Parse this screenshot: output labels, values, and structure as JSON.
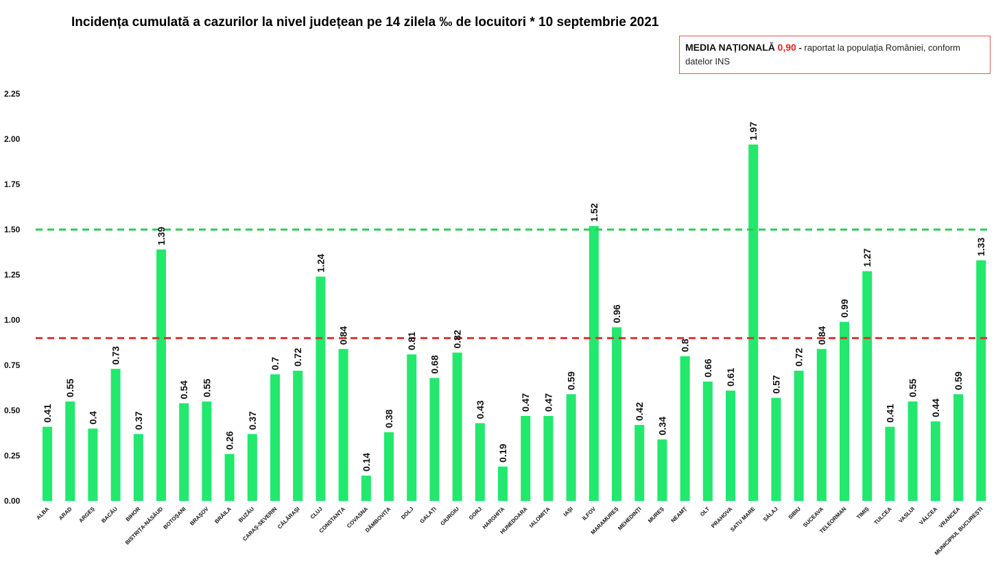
{
  "title": "Incidența cumulată a cazurilor la nivel județean pe 14 zilela ‰ de locuitori * 10 septembrie 2021",
  "annotation": {
    "label": "MEDIA NAȚIONALĂ",
    "value": "0,90",
    "dash": "-",
    "text": "raportat la populația României, conform datelor INS"
  },
  "colors": {
    "bar": "#22e86e",
    "national_average_line": "#e03030",
    "threshold_line": "#2ec85a",
    "annotation_border": "#e05555",
    "annotation_value": "#e02020"
  },
  "chart_data": {
    "type": "bar",
    "title": "Incidența cumulată a cazurilor la nivel județean pe 14 zilela ‰ de locuitori * 10 septembrie 2021",
    "xlabel": "",
    "ylabel": "",
    "ylim": [
      0,
      2.25
    ],
    "yticks": [
      "0.00",
      "0.25",
      "0.50",
      "0.75",
      "1.00",
      "1.25",
      "1.50",
      "1.75",
      "2.00",
      "2.25"
    ],
    "grid": false,
    "categories": [
      "ALBA",
      "ARAD",
      "ARGEȘ",
      "BACĂU",
      "BIHOR",
      "BISTRIȚA-NĂSĂUD",
      "BOTOȘANI",
      "BRAȘOV",
      "BRĂILA",
      "BUZĂU",
      "CARAȘ-SEVERIN",
      "CĂLĂRAȘI",
      "CLUJ",
      "CONSTANȚA",
      "COVASNA",
      "DÂMBOVIȚA",
      "DOLJ",
      "GALAȚI",
      "GIURGIU",
      "GORJ",
      "HARGHITA",
      "HUNEDOARA",
      "IALOMIȚA",
      "IAȘI",
      "ILFOV",
      "MARAMUREȘ",
      "MEHEDINȚI",
      "MUREȘ",
      "NEAMȚ",
      "OLT",
      "PRAHOVA",
      "SATU MARE",
      "SĂLAJ",
      "SIBIU",
      "SUCEAVA",
      "TELEORMAN",
      "TIMIȘ",
      "TULCEA",
      "VASLUI",
      "VÂLCEA",
      "VRANCEA",
      "MUNICIPIUL BUCUREȘTI"
    ],
    "values": [
      0.41,
      0.55,
      0.4,
      0.73,
      0.37,
      1.39,
      0.54,
      0.55,
      0.26,
      0.37,
      0.7,
      0.72,
      1.24,
      0.84,
      0.14,
      0.38,
      0.81,
      0.68,
      0.82,
      0.43,
      0.19,
      0.47,
      0.47,
      0.59,
      1.52,
      0.96,
      0.42,
      0.34,
      0.8,
      0.66,
      0.61,
      1.97,
      0.57,
      0.72,
      0.84,
      0.99,
      1.27,
      0.41,
      0.55,
      0.44,
      0.59,
      1.33
    ],
    "data_labels": [
      "0.41",
      "0.55",
      "0.4",
      "0.73",
      "0.37",
      "1.39",
      "0.54",
      "0.55",
      "0.26",
      "0.37",
      "0.7",
      "0.72",
      "1.24",
      "0.84",
      "0.14",
      "0.38",
      "0.81",
      "0.68",
      "0.82",
      "0.43",
      "0.19",
      "0.47",
      "0.47",
      "0.59",
      "1.52",
      "0.96",
      "0.42",
      "0.34",
      "0.8",
      "0.66",
      "0.61",
      "1.97",
      "0.57",
      "0.72",
      "0.84",
      "0.99",
      "1.27",
      "0.41",
      "0.55",
      "0.44",
      "0.59",
      "1.33"
    ],
    "reference_lines": [
      {
        "value": 0.9,
        "style": "dashed",
        "color": "#e03030"
      },
      {
        "value": 1.5,
        "style": "dashed",
        "color": "#2ec85a"
      }
    ]
  }
}
